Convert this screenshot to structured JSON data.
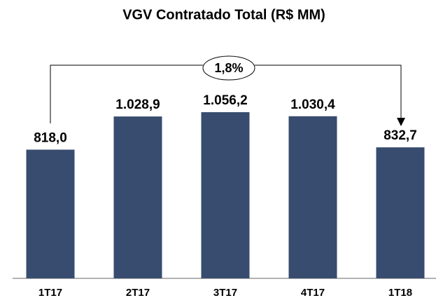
{
  "chart_data": {
    "type": "bar",
    "title": "VGV Contratado Total (R$ MM)",
    "categories": [
      "1T17",
      "2T17",
      "3T17",
      "4T17",
      "1T18"
    ],
    "values": [
      818.0,
      1028.9,
      1056.2,
      1030.4,
      832.7
    ],
    "value_labels": [
      "818,0",
      "1.028,9",
      "1.056,2",
      "1.030,4",
      "832,7"
    ],
    "color": "#374c6e",
    "annotation": "1,8%"
  }
}
